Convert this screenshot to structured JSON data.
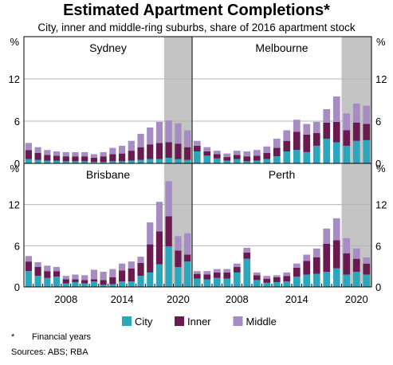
{
  "title": "Estimated Apartment Completions*",
  "subtitle": "City, inner and middle-ring suburbs, share of 2016 apartment stock",
  "footnote_marker": "*",
  "footnote_text": "Financial years",
  "sources": "Sources: ABS; RBA",
  "colors": {
    "City": "#2ca6bd",
    "Inner": "#6b1a4f",
    "Middle": "#a68cc2",
    "shade": "#c4c4c4"
  },
  "chart_data": {
    "type": "bar",
    "stacked": true,
    "unit": "%",
    "ylim": [
      0,
      18
    ],
    "yticks": [
      0,
      6,
      12
    ],
    "xticks": [
      "2008",
      "2014",
      "2020"
    ],
    "shaded_forecast_from": "2019",
    "legend": [
      "City",
      "Inner",
      "Middle"
    ],
    "legend_position": "bottom",
    "years": [
      "2004",
      "2005",
      "2006",
      "2007",
      "2008",
      "2009",
      "2010",
      "2011",
      "2012",
      "2013",
      "2014",
      "2015",
      "2016",
      "2017",
      "2018",
      "2019",
      "2020",
      "2021"
    ],
    "panels": [
      {
        "name": "Sydney",
        "series": [
          {
            "name": "City",
            "values": [
              0.6,
              0.5,
              0.4,
              0.4,
              0.3,
              0.3,
              0.3,
              0.2,
              0.2,
              0.3,
              0.3,
              0.4,
              0.5,
              0.6,
              0.6,
              0.8,
              0.6,
              0.5
            ]
          },
          {
            "name": "Inner",
            "values": [
              1.3,
              1.0,
              0.8,
              0.7,
              0.7,
              0.7,
              0.7,
              0.6,
              0.8,
              1.0,
              1.1,
              1.4,
              1.8,
              2.1,
              2.3,
              2.2,
              2.2,
              1.8
            ]
          },
          {
            "name": "Middle",
            "values": [
              1.0,
              0.8,
              0.7,
              0.6,
              0.6,
              0.6,
              0.6,
              0.5,
              0.6,
              0.9,
              1.1,
              1.4,
              1.9,
              2.4,
              3.0,
              3.1,
              2.9,
              2.4
            ]
          }
        ]
      },
      {
        "name": "Melbourne",
        "series": [
          {
            "name": "City",
            "values": [
              1.7,
              1.1,
              0.7,
              0.4,
              0.6,
              0.3,
              0.4,
              0.6,
              1.0,
              1.7,
              1.9,
              1.6,
              2.5,
              3.5,
              3.0,
              2.5,
              3.2,
              3.3
            ]
          },
          {
            "name": "Inner",
            "values": [
              0.8,
              0.6,
              0.6,
              0.5,
              0.6,
              0.7,
              0.7,
              0.9,
              1.2,
              1.5,
              2.6,
              2.5,
              1.8,
              2.3,
              2.9,
              2.2,
              2.6,
              2.3
            ]
          },
          {
            "name": "Middle",
            "values": [
              0.7,
              0.6,
              0.5,
              0.5,
              0.6,
              0.7,
              0.8,
              0.9,
              1.3,
              1.5,
              1.7,
              1.5,
              1.6,
              1.9,
              3.6,
              2.4,
              2.7,
              2.6
            ]
          }
        ]
      },
      {
        "name": "Brisbane",
        "series": [
          {
            "name": "City",
            "values": [
              2.3,
              1.6,
              1.3,
              1.5,
              0.5,
              0.7,
              0.5,
              0.8,
              0.3,
              0.4,
              0.8,
              0.8,
              1.6,
              2.1,
              3.3,
              5.9,
              2.9,
              3.7
            ]
          },
          {
            "name": "Inner",
            "values": [
              1.4,
              1.3,
              1.0,
              0.8,
              0.6,
              0.4,
              0.5,
              0.3,
              0.7,
              1.0,
              1.6,
              1.9,
              1.9,
              4.1,
              4.8,
              4.4,
              2.4,
              1.0
            ]
          },
          {
            "name": "Middle",
            "values": [
              0.8,
              0.7,
              0.8,
              0.6,
              0.5,
              0.7,
              0.7,
              1.4,
              1.2,
              1.2,
              1.0,
              1.0,
              0.9,
              3.2,
              4.3,
              5.1,
              2.1,
              3.1
            ]
          }
        ]
      },
      {
        "name": "Perth",
        "series": [
          {
            "name": "City",
            "values": [
              1.2,
              1.1,
              1.3,
              1.2,
              2.1,
              4.1,
              1.0,
              0.6,
              0.7,
              0.8,
              1.5,
              1.8,
              1.9,
              2.2,
              2.7,
              1.8,
              2.2,
              1.8
            ]
          },
          {
            "name": "Inner",
            "values": [
              0.7,
              0.7,
              0.8,
              0.9,
              0.8,
              0.9,
              0.7,
              0.6,
              0.7,
              0.8,
              1.3,
              2.0,
              2.4,
              4.1,
              4.1,
              3.1,
              1.9,
              1.6
            ]
          },
          {
            "name": "Middle",
            "values": [
              0.4,
              0.5,
              0.5,
              0.5,
              0.5,
              0.7,
              0.4,
              0.4,
              0.3,
              0.5,
              0.6,
              0.9,
              1.3,
              2.2,
              3.2,
              2.2,
              1.5,
              0.9
            ]
          }
        ]
      }
    ]
  }
}
